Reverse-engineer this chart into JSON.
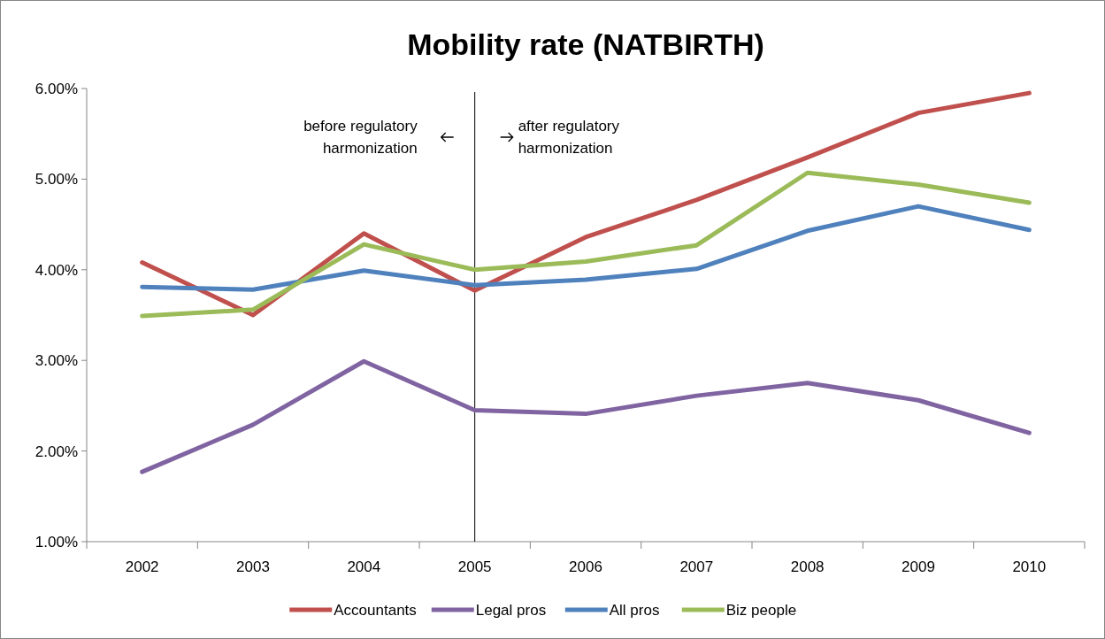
{
  "chart_data": {
    "type": "line",
    "title": "Mobility rate (NATBIRTH)",
    "categories": [
      "2002",
      "2003",
      "2004",
      "2005",
      "2006",
      "2007",
      "2008",
      "2009",
      "2010"
    ],
    "series": [
      {
        "name": "Accountants",
        "color": "#c0504d",
        "values": [
          4.08,
          3.5,
          4.4,
          3.77,
          4.36,
          4.77,
          5.24,
          5.73,
          5.95
        ]
      },
      {
        "name": "Legal pros",
        "color": "#8064a2",
        "values": [
          1.77,
          2.29,
          2.99,
          2.45,
          2.41,
          2.61,
          2.75,
          2.56,
          2.2
        ]
      },
      {
        "name": "All pros",
        "color": "#4f81bd",
        "values": [
          3.81,
          3.78,
          3.99,
          3.83,
          3.89,
          4.01,
          4.43,
          4.7,
          4.44
        ]
      },
      {
        "name": "Biz people",
        "color": "#9bbb59",
        "values": [
          3.49,
          3.56,
          4.28,
          4.0,
          4.09,
          4.27,
          5.07,
          4.94,
          4.74
        ]
      }
    ],
    "ylim": [
      1,
      6
    ],
    "yticks": [
      {
        "value": 1,
        "label": "1.00%"
      },
      {
        "value": 2,
        "label": "2.00%"
      },
      {
        "value": 3,
        "label": "3.00%"
      },
      {
        "value": 4,
        "label": "4.00%"
      },
      {
        "value": 5,
        "label": "5.00%"
      },
      {
        "value": 6,
        "label": "6.00%"
      }
    ],
    "ref_lines": [
      {
        "axis": "x",
        "value": "2005",
        "color": "#000000"
      }
    ],
    "annotations": [
      "before regulatory\nharmonization",
      "after regulatory\nharmonization"
    ],
    "legend": "bottom",
    "grid": false,
    "marker": "none",
    "line_style": "solid"
  }
}
